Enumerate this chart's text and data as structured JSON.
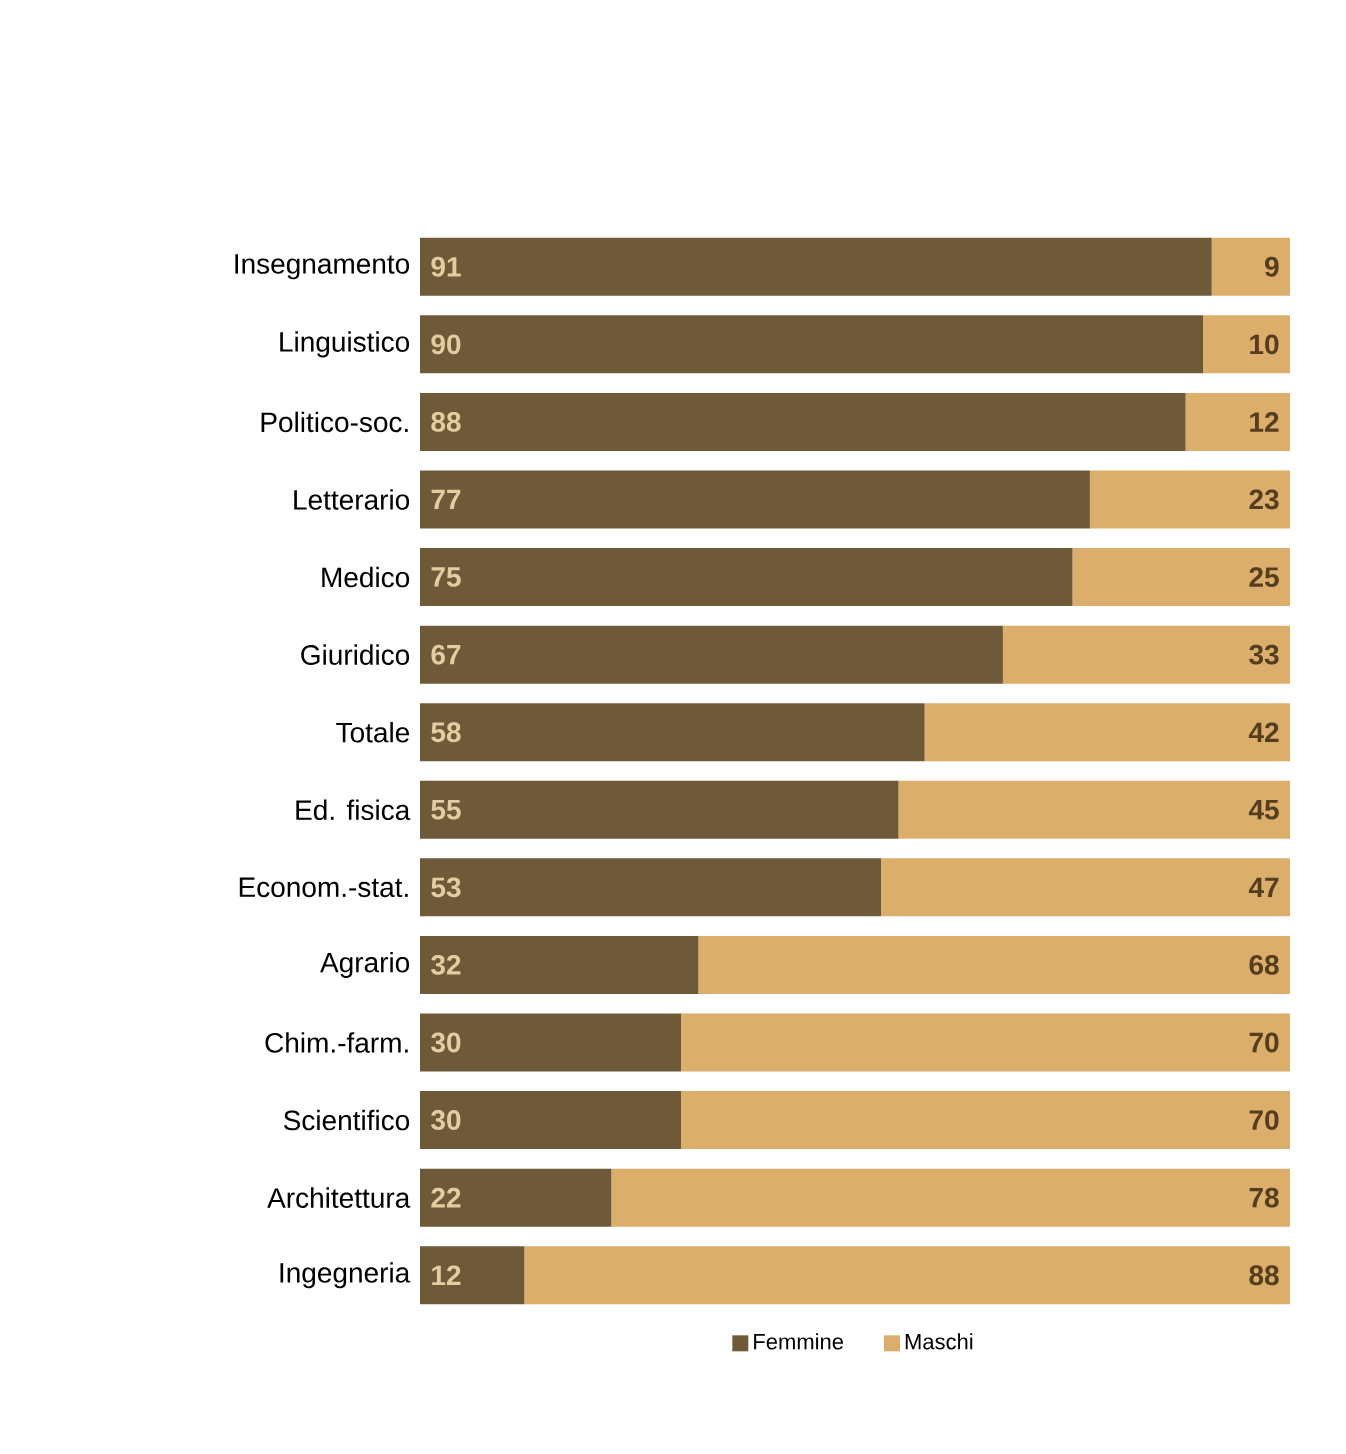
{
  "chart_data": {
    "type": "bar",
    "orientation": "horizontal",
    "stacked": true,
    "data_labels": true,
    "legend": "bottom",
    "tick_labels": "y",
    "categories": [
      "Insegnamento",
      "Linguistico",
      "Politico-soc.",
      "Letterario",
      "Medico",
      "Giuridico",
      "Totale",
      "Ed. fisica",
      "Econom.-stat.",
      "Agrario",
      "Chim.-farm.",
      "Scientifico",
      "Architettura",
      "Ingegneria"
    ],
    "series": [
      {
        "name": "Femmine",
        "color": "#6e5a38",
        "values": [
          91,
          90,
          88,
          77,
          75,
          67,
          58,
          55,
          53,
          32,
          30,
          30,
          22,
          12
        ]
      },
      {
        "name": "Maschi",
        "color": "#dcae6c",
        "values": [
          9,
          10,
          12,
          23,
          25,
          33,
          42,
          45,
          47,
          68,
          70,
          70,
          78,
          88
        ]
      }
    ]
  }
}
